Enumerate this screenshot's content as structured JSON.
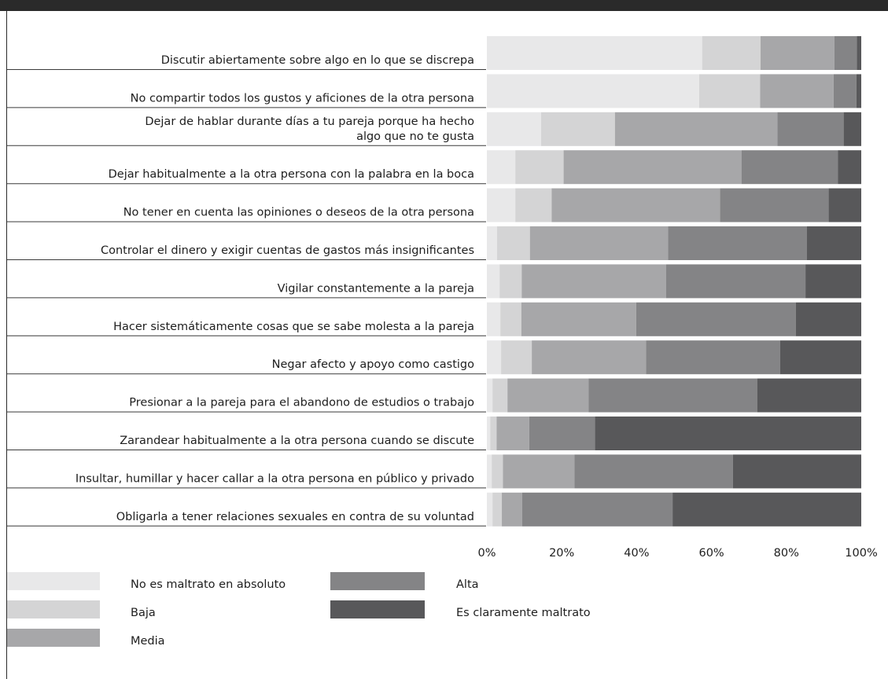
{
  "chart_data": {
    "type": "bar",
    "orientation": "horizontal",
    "stacked": true,
    "percent_stacked": true,
    "categories": [
      [
        "Discutir abiertamente sobre algo en lo que se discrepa"
      ],
      [
        "No compartir todos los gustos y aficiones de la otra persona"
      ],
      [
        "Dejar de hablar durante días a tu pareja porque ha hecho",
        "algo que no te gusta"
      ],
      [
        "Dejar habitualmente a la otra persona con la palabra en la boca"
      ],
      [
        "No tener en cuenta las opiniones o deseos de la otra persona"
      ],
      [
        "Controlar el dinero y exigir cuentas de gastos más insignificantes"
      ],
      [
        "Vigilar constantemente a la pareja"
      ],
      [
        "Hacer sistemáticamente cosas que se sabe molesta a la pareja"
      ],
      [
        "Negar afecto y apoyo como castigo"
      ],
      [
        "Presionar a la pareja para el abandono de estudios o trabajo"
      ],
      [
        "Zarandear habitualmente a la otra persona cuando se discute"
      ],
      [
        "Insultar, humillar y hacer callar a la otra persona en público y privado"
      ],
      [
        "Obligarla a tener relaciones sexuales en contra de su voluntad"
      ]
    ],
    "series": [
      {
        "name": "No es maltrato en absoluto",
        "color": "#e8e8e9",
        "values": [
          57.5,
          56.7,
          14.5,
          7.6,
          7.6,
          2.7,
          3.4,
          3.6,
          3.8,
          1.5,
          0.9,
          1.3,
          1.5
        ]
      },
      {
        "name": "Baja",
        "color": "#d4d4d5",
        "values": [
          15.6,
          16.3,
          19.7,
          12.9,
          9.7,
          8.8,
          5.9,
          5.6,
          8.2,
          4.0,
          1.7,
          3.0,
          2.5
        ]
      },
      {
        "name": "Media",
        "color": "#a7a7a9",
        "values": [
          19.7,
          19.6,
          43.4,
          47.5,
          45.0,
          36.9,
          38.6,
          30.7,
          30.5,
          21.7,
          8.7,
          19.1,
          5.4
        ]
      },
      {
        "name": "Alta",
        "color": "#848486",
        "values": [
          6.0,
          6.1,
          17.7,
          25.8,
          29.0,
          37.1,
          37.2,
          42.6,
          35.8,
          45.0,
          17.6,
          42.3,
          40.2
        ]
      },
      {
        "name": "Es claramente maltrato",
        "color": "#58585a",
        "values": [
          1.2,
          1.3,
          4.7,
          6.2,
          8.7,
          14.5,
          14.9,
          17.5,
          21.7,
          27.8,
          71.1,
          34.3,
          50.4
        ]
      }
    ],
    "xlim": [
      0,
      100
    ],
    "xticks": [
      "0%",
      "20%",
      "40%",
      "60%",
      "80%",
      "100%"
    ],
    "legend": "bottom-left",
    "grid": false,
    "title": "",
    "xlabel": "",
    "ylabel": ""
  }
}
